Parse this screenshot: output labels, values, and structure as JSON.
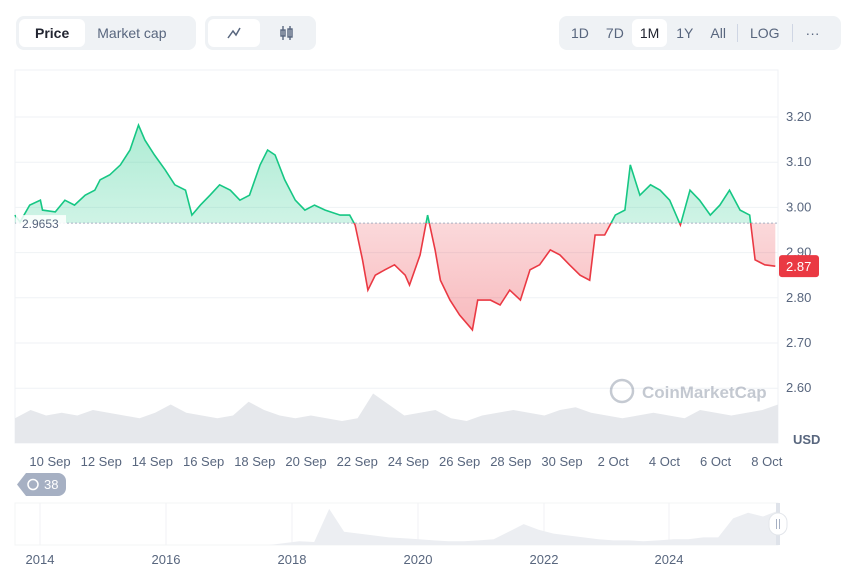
{
  "toolbar": {
    "view_tabs": [
      {
        "label": "Price",
        "active": true
      },
      {
        "label": "Market cap",
        "active": false
      }
    ],
    "chart_type_buttons": [
      {
        "icon": "line-chart-icon",
        "active": true
      },
      {
        "icon": "candlestick-icon",
        "active": false
      }
    ],
    "ranges": [
      {
        "label": "1D"
      },
      {
        "label": "7D"
      },
      {
        "label": "1M",
        "active": true
      },
      {
        "label": "1Y"
      },
      {
        "label": "All"
      }
    ],
    "log_label": "LOG",
    "more_label": "···"
  },
  "history_badge": {
    "icon": "history-icon",
    "count": "38"
  },
  "watermark": "CoinMarketCap",
  "colors": {
    "up": "#16c784",
    "down": "#ea3943",
    "grid": "#eff2f5",
    "volume": "#e6e8ec"
  },
  "chart_data": {
    "type": "area",
    "currency": "USD",
    "reference_value": 2.9653,
    "reference_label": "2.9653",
    "current_price_label": "2.87",
    "ylim": [
      2.55,
      3.3
    ],
    "yticks": [
      "3.20",
      "3.10",
      "3.00",
      "2.90",
      "2.80",
      "2.70",
      "2.60"
    ],
    "ytick_values": [
      3.2,
      3.1,
      3.0,
      2.9,
      2.8,
      2.7,
      2.6
    ],
    "xticks": [
      "10 Sep",
      "12 Sep",
      "14 Sep",
      "16 Sep",
      "18 Sep",
      "20 Sep",
      "22 Sep",
      "24 Sep",
      "26 Sep",
      "28 Sep",
      "30 Sep",
      "2 Oct",
      "4 Oct",
      "6 Oct",
      "8 Oct"
    ],
    "grid": true,
    "points": [
      [
        "Sep 8 15:00",
        2.983
      ],
      [
        "Sep 8 20:00",
        2.968
      ],
      [
        "Sep 9 05:00",
        3.005
      ],
      [
        "Sep 9 15:00",
        3.016
      ],
      [
        "Sep 9 17:00",
        2.994
      ],
      [
        "Sep 10 05:00",
        2.99
      ],
      [
        "Sep 10 14:00",
        3.016
      ],
      [
        "Sep 10 23:00",
        3.005
      ],
      [
        "Sep 11 09:00",
        3.027
      ],
      [
        "Sep 11 18:00",
        3.038
      ],
      [
        "Sep 11 23:00",
        3.061
      ],
      [
        "Sep 12 08:00",
        3.072
      ],
      [
        "Sep 12 18:00",
        3.094
      ],
      [
        "Sep 13 03:00",
        3.127
      ],
      [
        "Sep 13 11:00",
        3.182
      ],
      [
        "Sep 13 17:00",
        3.149
      ],
      [
        "Sep 14 02:00",
        3.116
      ],
      [
        "Sep 14 12:00",
        3.083
      ],
      [
        "Sep 14 21:00",
        3.05
      ],
      [
        "Sep 15 07:00",
        3.038
      ],
      [
        "Sep 15 13:00",
        2.983
      ],
      [
        "Sep 15 21:00",
        3.005
      ],
      [
        "Sep 16 06:00",
        3.027
      ],
      [
        "Sep 16 15:00",
        3.05
      ],
      [
        "Sep 17 01:00",
        3.038
      ],
      [
        "Sep 17 10:00",
        3.016
      ],
      [
        "Sep 17 19:00",
        3.027
      ],
      [
        "Sep 18 05:00",
        3.094
      ],
      [
        "Sep 18 12:00",
        3.127
      ],
      [
        "Sep 18 19:00",
        3.116
      ],
      [
        "Sep 19 04:00",
        3.061
      ],
      [
        "Sep 19 14:00",
        3.016
      ],
      [
        "Sep 19 23:00",
        2.994
      ],
      [
        "Sep 20 08:00",
        3.005
      ],
      [
        "Sep 20 18:00",
        2.994
      ],
      [
        "Sep 21 08:00",
        2.983
      ],
      [
        "Sep 21 17:00",
        2.983
      ],
      [
        "Sep 21 22:00",
        2.961
      ],
      [
        "Sep 22 05:00",
        2.884
      ],
      [
        "Sep 22 10:00",
        2.817
      ],
      [
        "Sep 22 17:00",
        2.85
      ],
      [
        "Sep 23 02:00",
        2.862
      ],
      [
        "Sep 23 11:00",
        2.873
      ],
      [
        "Sep 23 21:00",
        2.85
      ],
      [
        "Sep 24 01:00",
        2.828
      ],
      [
        "Sep 24 11:00",
        2.895
      ],
      [
        "Sep 24 18:00",
        2.983
      ],
      [
        "Sep 25 01:00",
        2.906
      ],
      [
        "Sep 25 06:00",
        2.839
      ],
      [
        "Sep 25 15:00",
        2.795
      ],
      [
        "Sep 26 00:00",
        2.762
      ],
      [
        "Sep 26 12:00",
        2.729
      ],
      [
        "Sep 26 17:00",
        2.795
      ],
      [
        "Sep 27 05:00",
        2.795
      ],
      [
        "Sep 27 14:00",
        2.784
      ],
      [
        "Sep 27 23:00",
        2.817
      ],
      [
        "Sep 28 09:00",
        2.795
      ],
      [
        "Sep 28 18:00",
        2.862
      ],
      [
        "Sep 29 03:00",
        2.873
      ],
      [
        "Sep 29 13:00",
        2.906
      ],
      [
        "Sep 29 22:00",
        2.895
      ],
      [
        "Sep 30 07:00",
        2.873
      ],
      [
        "Sep 30 17:00",
        2.85
      ],
      [
        "Oct 1 02:00",
        2.839
      ],
      [
        "Oct 1 07:00",
        2.939
      ],
      [
        "Oct 1 16:00",
        2.939
      ],
      [
        "Oct 2 02:00",
        2.983
      ],
      [
        "Oct 2 11:00",
        2.994
      ],
      [
        "Oct 2 16:00",
        3.094
      ],
      [
        "Oct 3 01:00",
        3.027
      ],
      [
        "Oct 3 11:00",
        3.05
      ],
      [
        "Oct 3 20:00",
        3.038
      ],
      [
        "Oct 4 05:00",
        3.016
      ],
      [
        "Oct 4 15:00",
        2.961
      ],
      [
        "Oct 5 00:00",
        3.038
      ],
      [
        "Oct 5 09:00",
        3.016
      ],
      [
        "Oct 5 19:00",
        2.983
      ],
      [
        "Oct 6 04:00",
        3.005
      ],
      [
        "Oct 6 13:00",
        3.038
      ],
      [
        "Oct 6 23:00",
        2.994
      ],
      [
        "Oct 7 08:00",
        2.983
      ],
      [
        "Oct 7 13:00",
        2.884
      ],
      [
        "Oct 7 22:00",
        2.873
      ],
      [
        "Oct 8 08:00",
        2.87
      ]
    ],
    "volume_relative": [
      0.45,
      0.6,
      0.5,
      0.55,
      0.5,
      0.6,
      0.55,
      0.5,
      0.45,
      0.55,
      0.7,
      0.55,
      0.5,
      0.45,
      0.5,
      0.75,
      0.6,
      0.5,
      0.45,
      0.5,
      0.45,
      0.4,
      0.45,
      0.9,
      0.7,
      0.5,
      0.55,
      0.6,
      0.45,
      0.4,
      0.5,
      0.55,
      0.6,
      0.55,
      0.5,
      0.6,
      0.65,
      0.55,
      0.5,
      0.45,
      0.5,
      0.55,
      0.5,
      0.45,
      0.6,
      0.55,
      0.5,
      0.55,
      0.6,
      0.7
    ],
    "navigator": {
      "xticks": [
        "2014",
        "2016",
        "2018",
        "2020",
        "2022",
        "2024"
      ],
      "volume_relative": [
        0,
        0,
        0,
        0,
        0,
        0,
        0,
        0,
        0,
        0,
        0,
        0,
        0,
        0,
        0,
        0,
        0,
        0,
        0.05,
        0.1,
        0.08,
        0.95,
        0.35,
        0.3,
        0.25,
        0.2,
        0.18,
        0.15,
        0.12,
        0.1,
        0.1,
        0.12,
        0.15,
        0.35,
        0.55,
        0.4,
        0.3,
        0.25,
        0.2,
        0.15,
        0.12,
        0.12,
        0.1,
        0.12,
        0.15,
        0.15,
        0.2,
        0.2,
        0.7,
        0.85,
        0.75,
        0.9
      ]
    }
  }
}
